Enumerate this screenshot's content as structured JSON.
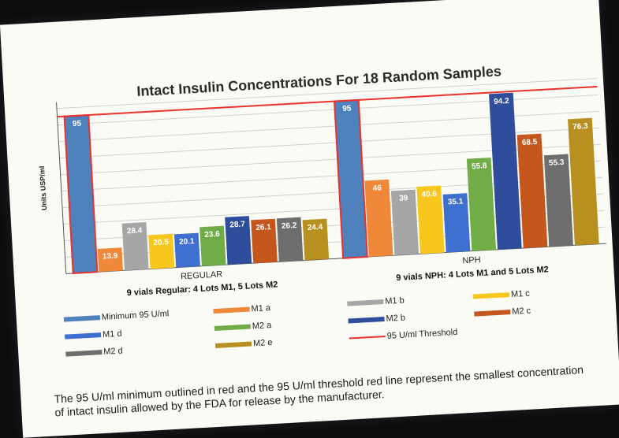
{
  "chart_data": {
    "type": "bar",
    "title": "Intact Insulin Concentrations For 18 Random Samples",
    "ylabel": "Units USP/ml",
    "ylim": [
      0,
      100
    ],
    "threshold": {
      "value": 95,
      "label": "95 U/ml Threshold",
      "color": "#e8322c"
    },
    "groups": [
      {
        "name": "REGULAR",
        "subtitle": "9 vials Regular: 4 Lots M1, 5 Lots M2",
        "bars": [
          {
            "series": "Minimum 95 U/ml",
            "value": 95,
            "label": "95"
          },
          {
            "series": "M1 a",
            "value": 13.9,
            "label": "13.9"
          },
          {
            "series": "M1 b",
            "value": 28.4,
            "label": "28.4"
          },
          {
            "series": "M1 c",
            "value": 20.5,
            "label": "20.5"
          },
          {
            "series": "M1 d",
            "value": 20.1,
            "label": "20.1"
          },
          {
            "series": "M2 a",
            "value": 23.6,
            "label": "23.6"
          },
          {
            "series": "M2 b",
            "value": 28.7,
            "label": "28.7"
          },
          {
            "series": "M2 c",
            "value": 26.1,
            "label": "26.1"
          },
          {
            "series": "M2 d",
            "value": 26.2,
            "label": "26.2"
          },
          {
            "series": "M2 e",
            "value": 24.4,
            "label": "24.4"
          }
        ]
      },
      {
        "name": "NPH",
        "subtitle": "9 vials NPH: 4 Lots M1 and 5 Lots M2",
        "bars": [
          {
            "series": "Minimum 95 U/ml",
            "value": 95,
            "label": "95"
          },
          {
            "series": "M1 a",
            "value": 46,
            "label": "46"
          },
          {
            "series": "M1 b",
            "value": 39,
            "label": "39"
          },
          {
            "series": "M1 c",
            "value": 40.6,
            "label": "40.6"
          },
          {
            "series": "M1 d",
            "value": 35.1,
            "label": "35.1"
          },
          {
            "series": "M2 a",
            "value": 55.8,
            "label": "55.8"
          },
          {
            "series": "M2 b",
            "value": 94.2,
            "label": "94.2"
          },
          {
            "series": "M2 c",
            "value": 68.5,
            "label": "68.5"
          },
          {
            "series": "M2 d",
            "value": 55.3,
            "label": "55.3"
          },
          {
            "series": "M2 e",
            "value": 76.3,
            "label": "76.3"
          }
        ]
      }
    ],
    "series": [
      {
        "name": "Minimum 95 U/ml",
        "color": "#4f81bd",
        "outline": "#e8322c"
      },
      {
        "name": "M1 a",
        "color": "#f0883a"
      },
      {
        "name": "M1 b",
        "color": "#a6a6a6"
      },
      {
        "name": "M1 c",
        "color": "#f7c71e"
      },
      {
        "name": "M1 d",
        "color": "#3f6fcf"
      },
      {
        "name": "M2 a",
        "color": "#70ad47"
      },
      {
        "name": "M2 b",
        "color": "#2e4d9b"
      },
      {
        "name": "M2 c",
        "color": "#c5561c"
      },
      {
        "name": "M2 d",
        "color": "#6e6e6e"
      },
      {
        "name": "M2 e",
        "color": "#b8901f"
      }
    ],
    "legend_placement": "bottom",
    "grid": true
  },
  "footnote": "The 95 U/ml minimum outlined in red and the 95 U/ml threshold red line represent the smallest concentration of intact insulin allowed by the FDA for release by the manufacturer."
}
